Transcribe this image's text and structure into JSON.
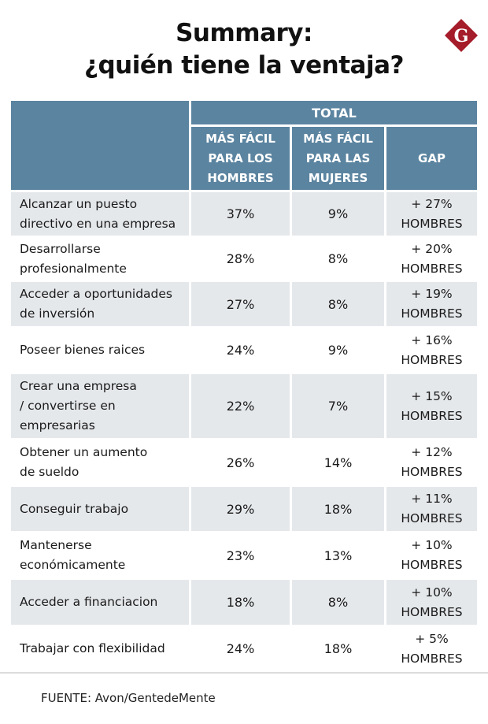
{
  "header": {
    "title_line1": "Summary:",
    "title_line2": "¿quién tiene la ventaja?",
    "logo_letter": "G",
    "brand_color": "#a51c2a"
  },
  "colors": {
    "header_bg": "#5b84a0",
    "row_shade": "#e5e8eb"
  },
  "chart_data": {
    "type": "table",
    "title": "Summary: ¿quién tiene la ventaja?",
    "group_header": "TOTAL",
    "columns": [
      "",
      "MÁS FÁCIL PARA LOS HOMBRES",
      "MÁS FÁCIL PARA LAS MUJERES",
      "GAP"
    ],
    "column_lines": [
      [],
      [
        "MÁS FÁCIL",
        "PARA LOS",
        "HOMBRES"
      ],
      [
        "MÁS FÁCIL",
        "PARA LAS",
        "MUJERES"
      ],
      [
        "GAP"
      ]
    ],
    "rows": [
      {
        "label_lines": [
          "Alcanzar un puesto",
          "directivo en una empresa"
        ],
        "hombres": "37%",
        "mujeres": "9%",
        "gap_lines": [
          "+ 27%",
          "HOMBRES"
        ]
      },
      {
        "label_lines": [
          "Desarrollarse",
          "profesionalmente"
        ],
        "hombres": "28%",
        "mujeres": "8%",
        "gap_lines": [
          "+ 20%",
          "HOMBRES"
        ]
      },
      {
        "label_lines": [
          "Acceder a oportunidades",
          "de inversión"
        ],
        "hombres": "27%",
        "mujeres": "8%",
        "gap_lines": [
          "+ 19%",
          "HOMBRES"
        ]
      },
      {
        "label_lines": [
          "Poseer bienes raices"
        ],
        "hombres": "24%",
        "mujeres": "9%",
        "gap_lines": [
          "+ 16%",
          "HOMBRES"
        ]
      },
      {
        "label_lines": [
          "Crear una empresa",
          "/ convertirse en",
          "empresarias"
        ],
        "hombres": "22%",
        "mujeres": "7%",
        "gap_lines": [
          "+ 15%",
          "HOMBRES"
        ]
      },
      {
        "label_lines": [
          "Obtener un aumento",
          "de sueldo"
        ],
        "hombres": "26%",
        "mujeres": "14%",
        "gap_lines": [
          "+ 12%",
          "HOMBRES"
        ]
      },
      {
        "label_lines": [
          "Conseguir trabajo"
        ],
        "hombres": "29%",
        "mujeres": "18%",
        "gap_lines": [
          "+ 11%",
          "HOMBRES"
        ]
      },
      {
        "label_lines": [
          "Mantenerse",
          "económicamente"
        ],
        "hombres": "23%",
        "mujeres": "13%",
        "gap_lines": [
          "+ 10%",
          "HOMBRES"
        ]
      },
      {
        "label_lines": [
          "Acceder a financiacion"
        ],
        "hombres": "18%",
        "mujeres": "8%",
        "gap_lines": [
          "+ 10%",
          "HOMBRES"
        ]
      },
      {
        "label_lines": [
          "Trabajar con flexibilidad"
        ],
        "hombres": "24%",
        "mujeres": "18%",
        "gap_lines": [
          "+ 5%",
          "HOMBRES"
        ]
      }
    ]
  },
  "footer": {
    "source": "FUENTE: Avon/GentedeMente"
  }
}
